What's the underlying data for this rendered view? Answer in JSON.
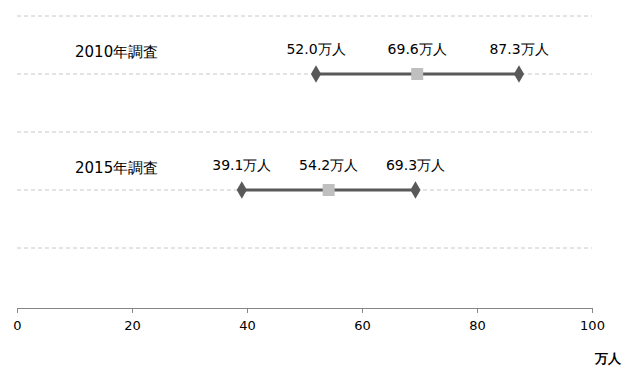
{
  "chart_data": {
    "type": "range",
    "orientation": "horizontal",
    "categories": [
      "2010年調査",
      "2015年調査"
    ],
    "series": [
      {
        "values": [
          52.0,
          39.1
        ],
        "value_labels": [
          "52.0万人",
          "39.1万人"
        ],
        "marker": "diamond",
        "color": "#595959"
      },
      {
        "values": [
          69.6,
          54.2
        ],
        "value_labels": [
          "69.6万人",
          "54.2万人"
        ],
        "marker": "square",
        "color": "#bfbfbf"
      },
      {
        "values": [
          87.3,
          69.3
        ],
        "value_labels": [
          "87.3万人",
          "69.3万人"
        ],
        "marker": "diamond",
        "color": "#595959"
      }
    ],
    "color": "#595959",
    "xlabel": "万人",
    "xlim": [
      0,
      100
    ],
    "xticks": [
      0,
      20,
      40,
      60,
      80,
      100
    ],
    "grid": true,
    "data_labels": true
  }
}
